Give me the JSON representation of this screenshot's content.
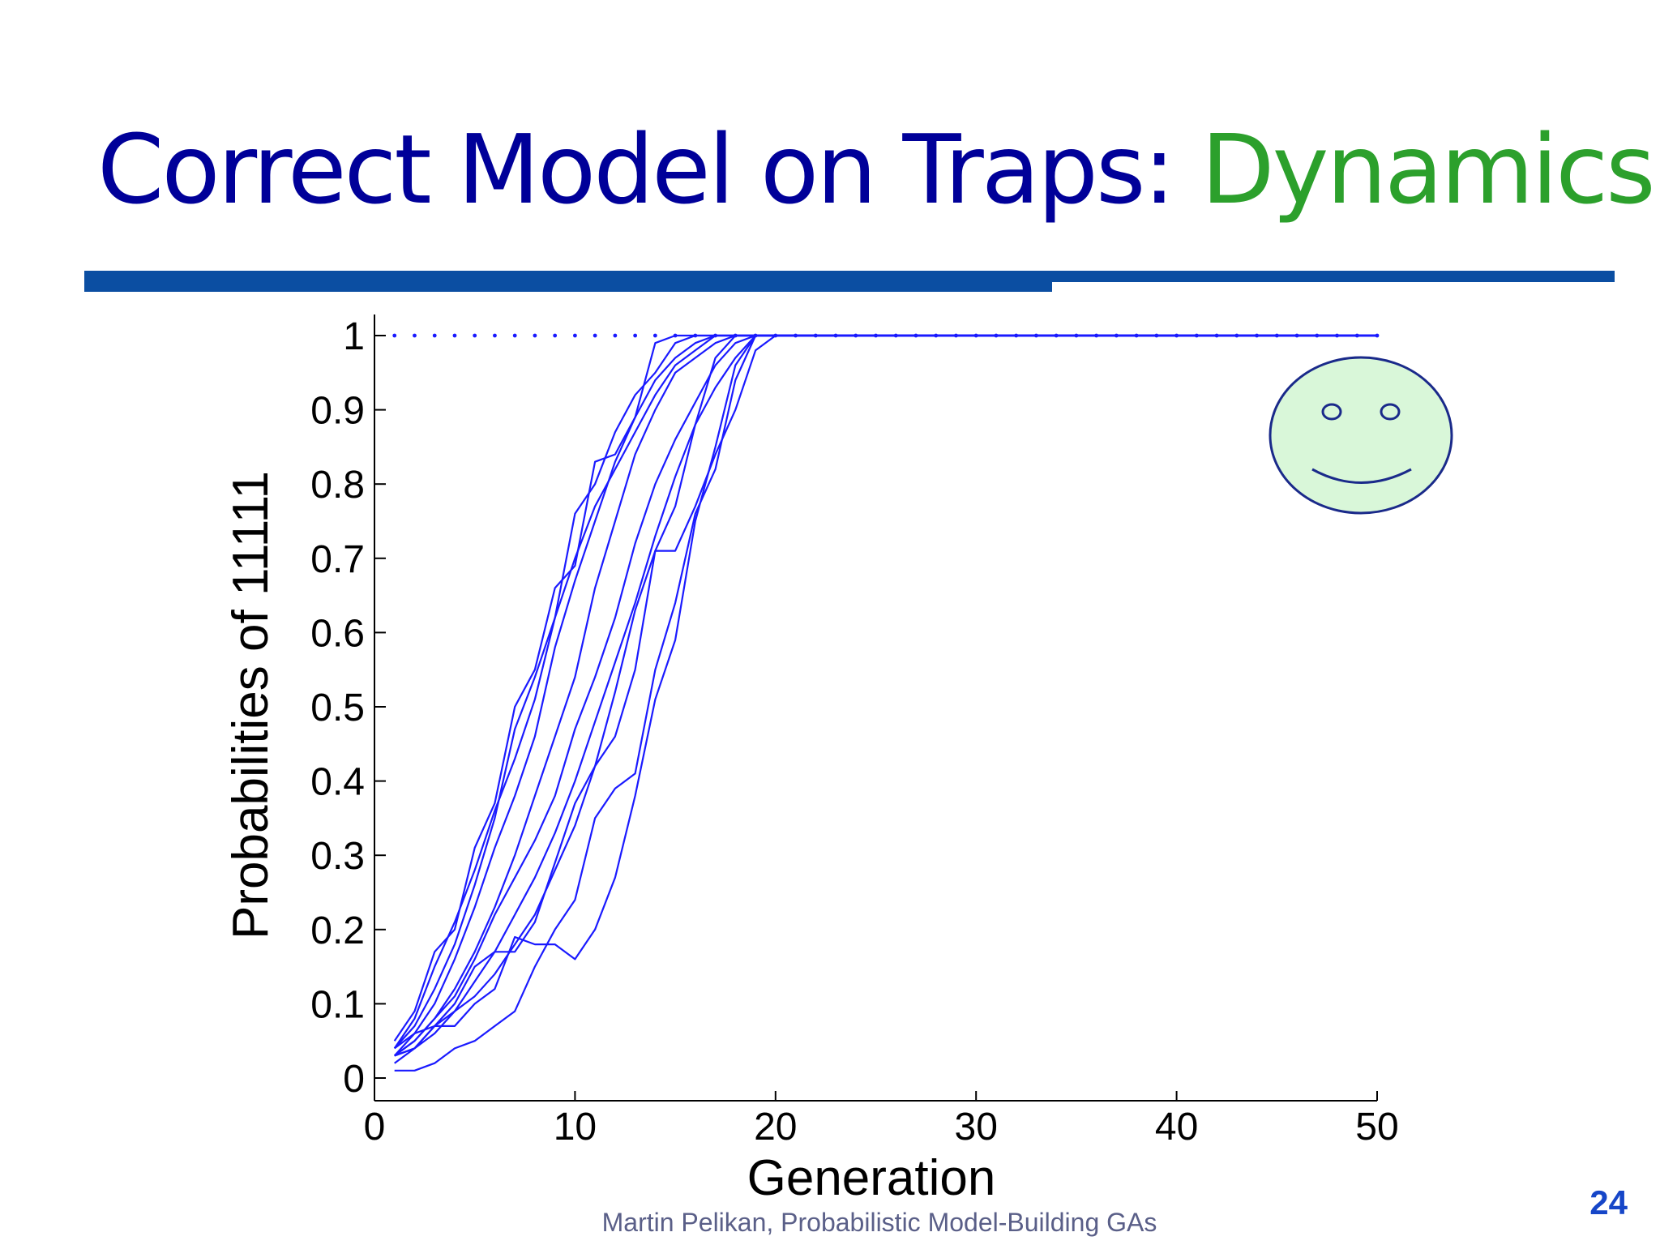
{
  "slide": {
    "title_main": "Correct Model on Traps: ",
    "title_accent": "Dynamics",
    "footer": "Martin Pelikan, Probabilistic Model-Building GAs",
    "page_number": "24"
  },
  "colors": {
    "title": "#000099",
    "accent": "#2ca02c",
    "rule": "#0b4ea2",
    "series": "#1a1aff",
    "face_fill": "#d9f7d9",
    "face_stroke": "#1a2a8a",
    "footer": "#5a5f88",
    "page_number": "#1646c8"
  },
  "icons": [
    "smiley-face-icon"
  ],
  "chart_data": {
    "type": "line",
    "xlabel": "Generation",
    "ylabel": "Probabilities of 11111",
    "xlim": [
      0,
      50
    ],
    "ylim": [
      0,
      1
    ],
    "xticks": [
      0,
      10,
      20,
      30,
      40,
      50
    ],
    "yticks": [
      "0",
      "0.1",
      "0.2",
      "0.3",
      "0.4",
      "0.5",
      "0.6",
      "0.7",
      "0.8",
      "0.9",
      "1"
    ],
    "grid": false,
    "legend": "none",
    "reference_line": {
      "y": 1,
      "style": "dotted",
      "x_range": [
        1,
        50
      ]
    },
    "series": [
      {
        "x": [
          1,
          2,
          3,
          4,
          5,
          6,
          7,
          8,
          9,
          10,
          11,
          12,
          13,
          14,
          15,
          16,
          17,
          18,
          19,
          20,
          22,
          25,
          30,
          35,
          40,
          45,
          50
        ],
        "values": [
          0.05,
          0.09,
          0.17,
          0.2,
          0.31,
          0.37,
          0.5,
          0.55,
          0.66,
          0.69,
          0.83,
          0.84,
          0.89,
          0.99,
          1,
          1,
          1,
          1,
          1,
          1,
          1,
          1,
          1,
          1,
          1,
          1,
          1
        ]
      },
      {
        "x": [
          1,
          2,
          3,
          4,
          5,
          6,
          7,
          8,
          9,
          10,
          11,
          12,
          13,
          14,
          15,
          16,
          17,
          18,
          19,
          20,
          25,
          30,
          40,
          50
        ],
        "values": [
          0.04,
          0.08,
          0.15,
          0.21,
          0.28,
          0.36,
          0.43,
          0.51,
          0.62,
          0.76,
          0.8,
          0.87,
          0.92,
          0.95,
          0.99,
          1,
          1,
          1,
          1,
          1,
          1,
          1,
          1,
          1
        ]
      },
      {
        "x": [
          1,
          2,
          3,
          4,
          5,
          6,
          7,
          8,
          9,
          10,
          11,
          12,
          13,
          14,
          15,
          16,
          17,
          18,
          19,
          20,
          25,
          30,
          40,
          50
        ],
        "values": [
          0.04,
          0.07,
          0.12,
          0.18,
          0.26,
          0.35,
          0.47,
          0.54,
          0.62,
          0.7,
          0.77,
          0.82,
          0.87,
          0.92,
          0.96,
          0.98,
          1,
          1,
          1,
          1,
          1,
          1,
          1,
          1
        ]
      },
      {
        "x": [
          1,
          2,
          3,
          4,
          5,
          6,
          7,
          8,
          9,
          10,
          11,
          12,
          13,
          14,
          15,
          16,
          17,
          18,
          19,
          20,
          25,
          30,
          40,
          50
        ],
        "values": [
          0.03,
          0.06,
          0.1,
          0.16,
          0.23,
          0.31,
          0.38,
          0.46,
          0.58,
          0.67,
          0.75,
          0.83,
          0.89,
          0.94,
          0.97,
          0.99,
          1,
          1,
          1,
          1,
          1,
          1,
          1,
          1
        ]
      },
      {
        "x": [
          1,
          2,
          3,
          4,
          5,
          6,
          7,
          8,
          9,
          10,
          11,
          12,
          13,
          14,
          15,
          16,
          17,
          18,
          19,
          20,
          25,
          30,
          40,
          50
        ],
        "values": [
          0.03,
          0.05,
          0.08,
          0.12,
          0.17,
          0.23,
          0.3,
          0.38,
          0.46,
          0.54,
          0.66,
          0.75,
          0.84,
          0.9,
          0.95,
          0.97,
          0.99,
          1,
          1,
          1,
          1,
          1,
          1,
          1
        ]
      },
      {
        "x": [
          1,
          2,
          3,
          4,
          5,
          6,
          7,
          8,
          9,
          10,
          11,
          12,
          13,
          14,
          15,
          16,
          17,
          18,
          19,
          20,
          25,
          30,
          40,
          50
        ],
        "values": [
          0.03,
          0.05,
          0.08,
          0.11,
          0.16,
          0.22,
          0.27,
          0.32,
          0.38,
          0.47,
          0.54,
          0.62,
          0.72,
          0.8,
          0.86,
          0.91,
          0.96,
          0.99,
          1,
          1,
          1,
          1,
          1,
          1
        ]
      },
      {
        "x": [
          1,
          2,
          3,
          4,
          5,
          6,
          7,
          8,
          9,
          10,
          11,
          12,
          13,
          14,
          15,
          16,
          17,
          18,
          19,
          20,
          25,
          30,
          40,
          50
        ],
        "values": [
          0.03,
          0.04,
          0.07,
          0.09,
          0.13,
          0.17,
          0.22,
          0.27,
          0.33,
          0.4,
          0.48,
          0.56,
          0.64,
          0.73,
          0.81,
          0.88,
          0.93,
          0.97,
          1,
          1,
          1,
          1,
          1,
          1
        ]
      },
      {
        "x": [
          1,
          2,
          3,
          4,
          5,
          6,
          7,
          8,
          9,
          10,
          11,
          12,
          13,
          14,
          15,
          16,
          17,
          18,
          19,
          20,
          25,
          30,
          40,
          50
        ],
        "values": [
          0.02,
          0.04,
          0.06,
          0.09,
          0.11,
          0.14,
          0.18,
          0.22,
          0.28,
          0.34,
          0.42,
          0.52,
          0.63,
          0.71,
          0.77,
          0.88,
          0.97,
          1,
          1,
          1,
          1,
          1,
          1,
          1
        ]
      },
      {
        "x": [
          1,
          2,
          3,
          4,
          5,
          6,
          7,
          8,
          9,
          10,
          11,
          12,
          13,
          14,
          15,
          16,
          17,
          18,
          19,
          20,
          25,
          30,
          40,
          50
        ],
        "values": [
          0.04,
          0.06,
          0.07,
          0.07,
          0.1,
          0.12,
          0.19,
          0.18,
          0.18,
          0.16,
          0.2,
          0.27,
          0.38,
          0.51,
          0.59,
          0.75,
          0.85,
          0.96,
          1,
          1,
          1,
          1,
          1,
          1
        ]
      },
      {
        "x": [
          1,
          2,
          3,
          4,
          5,
          6,
          7,
          8,
          9,
          10,
          11,
          12,
          13,
          14,
          15,
          16,
          17,
          18,
          19,
          20,
          25,
          30,
          40,
          50
        ],
        "values": [
          0.01,
          0.01,
          0.02,
          0.04,
          0.05,
          0.07,
          0.09,
          0.15,
          0.2,
          0.24,
          0.35,
          0.39,
          0.41,
          0.55,
          0.64,
          0.76,
          0.82,
          0.94,
          1,
          1,
          1,
          1,
          1,
          1
        ]
      },
      {
        "x": [
          1,
          2,
          3,
          4,
          5,
          6,
          7,
          8,
          9,
          10,
          11,
          12,
          13,
          14,
          15,
          16,
          17,
          18,
          19,
          20,
          25,
          30,
          40,
          50
        ],
        "values": [
          0.03,
          0.04,
          0.07,
          0.1,
          0.15,
          0.17,
          0.17,
          0.21,
          0.29,
          0.37,
          0.42,
          0.46,
          0.55,
          0.71,
          0.71,
          0.77,
          0.84,
          0.9,
          0.98,
          1,
          1,
          1,
          1,
          1
        ]
      }
    ]
  }
}
